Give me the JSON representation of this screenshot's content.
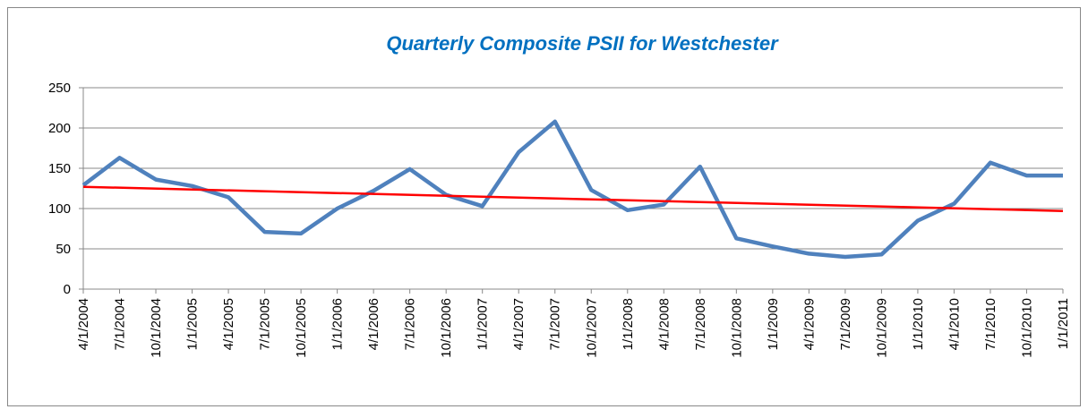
{
  "chart_data": {
    "type": "line",
    "title": "Quarterly Composite PSII for Westchester",
    "categories": [
      "4/1/2004",
      "7/1/2004",
      "10/1/2004",
      "1/1/2005",
      "4/1/2005",
      "7/1/2005",
      "10/1/2005",
      "1/1/2006",
      "4/1/2006",
      "7/1/2006",
      "10/1/2006",
      "1/1/2007",
      "4/1/2007",
      "7/1/2007",
      "10/1/2007",
      "1/1/2008",
      "4/1/2008",
      "7/1/2008",
      "10/1/2008",
      "1/1/2009",
      "4/1/2009",
      "7/1/2009",
      "10/1/2009",
      "1/1/2010",
      "4/1/2010",
      "7/1/2010",
      "10/1/2010",
      "1/1/2011"
    ],
    "values": [
      129,
      163,
      136,
      128,
      114,
      71,
      69,
      100,
      122,
      149,
      117,
      103,
      170,
      208,
      123,
      98,
      105,
      152,
      63,
      53,
      44,
      40,
      43,
      85,
      106,
      157,
      141,
      141
    ],
    "color": "#4f81bd",
    "trend": {
      "color": "#ff0000",
      "start": 127,
      "end": 97
    },
    "ylim": [
      0,
      250
    ],
    "yticks": [
      0,
      50,
      100,
      150,
      200,
      250
    ],
    "grid": true
  }
}
